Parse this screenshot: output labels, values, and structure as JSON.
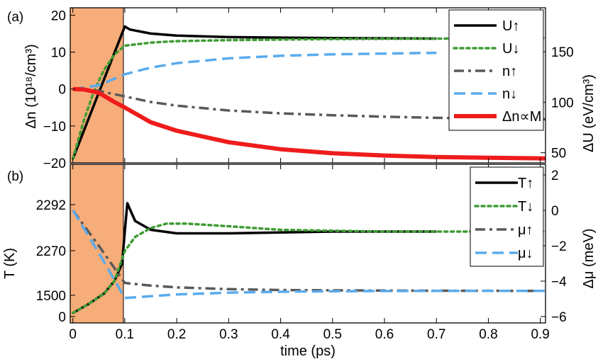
{
  "colors": {
    "pulse": "#f7ad79",
    "U_up": "#000000",
    "U_down": "#3f9c35",
    "n_up": "#595959",
    "n_down": "#5aabed",
    "dn": "#ee1c1c"
  },
  "chart_data": [
    {
      "type": "line",
      "panel_label": "(a)",
      "xlabel": "",
      "ylabel": "Δn (10¹⁸/cm³)",
      "ylabel_right": "ΔU (eV/cm³)",
      "xlim": [
        -0.005,
        0.91
      ],
      "ylim": [
        -20,
        22
      ],
      "ylim_right": [
        40,
        193.5
      ],
      "yticks": [
        -20,
        -10,
        0,
        10,
        20
      ],
      "yticks_right": [
        50,
        100,
        150
      ],
      "pulse_interval": [
        -0.005,
        0.1
      ],
      "legend_position": "top-right",
      "series": [
        {
          "name": "U↑",
          "key": "U_up",
          "axis": "right",
          "style": "solid",
          "width": 3.5,
          "x": [
            0,
            0.1,
            0.11,
            0.15,
            0.2,
            0.3,
            0.4,
            0.5,
            0.6,
            0.7
          ],
          "y": [
            44,
            175,
            172,
            168,
            166,
            164.5,
            164,
            163.5,
            163.3,
            163
          ]
        },
        {
          "name": "U↓",
          "key": "U_down",
          "axis": "right",
          "style": "dot",
          "width": 3.5,
          "x": [
            0,
            0.02,
            0.04,
            0.06,
            0.08,
            0.1,
            0.15,
            0.2,
            0.3,
            0.4,
            0.5,
            0.6,
            0.7,
            0.91
          ],
          "y": [
            44,
            80,
            110,
            132,
            147,
            156,
            159,
            160.5,
            161.5,
            162,
            162.5,
            162.8,
            163,
            163.5
          ]
        },
        {
          "name": "n↑",
          "key": "n_up",
          "axis": "left",
          "style": "dashdot",
          "width": 3.5,
          "x": [
            0,
            0.05,
            0.1,
            0.15,
            0.2,
            0.3,
            0.4,
            0.5,
            0.6,
            0.7,
            0.91
          ],
          "y": [
            0,
            -0.5,
            -2,
            -3.5,
            -4.5,
            -5.8,
            -6.6,
            -7.1,
            -7.5,
            -7.8,
            -8.2
          ]
        },
        {
          "name": "n↓",
          "key": "n_down",
          "axis": "left",
          "style": "dash",
          "width": 3.5,
          "x": [
            0,
            0.05,
            0.1,
            0.15,
            0.2,
            0.3,
            0.4,
            0.5,
            0.6,
            0.7
          ],
          "y": [
            0,
            1,
            4,
            5.8,
            7,
            8.3,
            9,
            9.4,
            9.6,
            9.8
          ]
        },
        {
          "name": "Δn∝M",
          "key": "dn",
          "axis": "left",
          "style": "solid",
          "width": 6,
          "x": [
            0,
            0.02,
            0.05,
            0.08,
            0.1,
            0.15,
            0.2,
            0.3,
            0.4,
            0.5,
            0.6,
            0.7,
            0.8,
            0.91
          ],
          "y": [
            0,
            -0.1,
            -1,
            -3.5,
            -5,
            -9,
            -11.3,
            -14.4,
            -16.3,
            -17.4,
            -18,
            -18.4,
            -18.6,
            -18.8
          ]
        }
      ]
    },
    {
      "type": "line",
      "panel_label": "(b)",
      "xlabel": "time (ps)",
      "ylabel": "T (K)",
      "ylabel_right": "Δμ (meV)",
      "xlim": [
        -0.005,
        0.91
      ],
      "xticks": [
        0,
        0.1,
        0.2,
        0.3,
        0.4,
        0.5,
        0.6,
        0.7,
        0.8,
        0.9
      ],
      "yticks_left_labels": [
        "2292",
        "2270",
        "1500",
        "0"
      ],
      "ylim_right": [
        -6.36,
        2.6
      ],
      "yticks_right": [
        -6,
        -4,
        -2,
        0,
        2
      ],
      "pulse_interval": [
        -0.005,
        0.1
      ],
      "legend_position": "top-right",
      "series": [
        {
          "name": "T↑",
          "key": "U_up",
          "axis": "right",
          "style": "solid",
          "width": 3.5,
          "x": [
            0,
            0.03,
            0.06,
            0.08,
            0.095,
            0.1,
            0.105,
            0.12,
            0.15,
            0.2,
            0.3,
            0.4,
            0.5,
            0.6,
            0.7
          ],
          "y": [
            -5.8,
            -5.3,
            -4.7,
            -4.0,
            -3.0,
            -1.2,
            0.4,
            -0.6,
            -1.1,
            -1.3,
            -1.3,
            -1.25,
            -1.2,
            -1.2,
            -1.2
          ]
        },
        {
          "name": "T↓",
          "key": "U_down",
          "axis": "right",
          "style": "dot",
          "width": 3.5,
          "x": [
            0,
            0.03,
            0.06,
            0.08,
            0.1,
            0.12,
            0.15,
            0.18,
            0.22,
            0.3,
            0.4,
            0.5,
            0.6,
            0.7,
            0.91
          ],
          "y": [
            -5.8,
            -5.3,
            -4.7,
            -4.0,
            -2.3,
            -1.5,
            -1.0,
            -0.75,
            -0.75,
            -0.9,
            -1.1,
            -1.15,
            -1.2,
            -1.2,
            -1.2
          ]
        },
        {
          "name": "μ↑",
          "key": "n_up",
          "axis": "right",
          "style": "dashdot",
          "width": 3.5,
          "x": [
            0,
            0.05,
            0.1,
            0.15,
            0.2,
            0.3,
            0.4,
            0.5,
            0.6,
            0.7,
            0.91
          ],
          "y": [
            0,
            -2.0,
            -4.1,
            -4.25,
            -4.35,
            -4.45,
            -4.5,
            -4.52,
            -4.53,
            -4.54,
            -4.55
          ]
        },
        {
          "name": "μ↓",
          "key": "n_down",
          "axis": "right",
          "style": "dash",
          "width": 3.5,
          "x": [
            0,
            0.05,
            0.1,
            0.15,
            0.2,
            0.3,
            0.4,
            0.5,
            0.6,
            0.7,
            0.91
          ],
          "y": [
            0,
            -2.4,
            -4.95,
            -4.85,
            -4.75,
            -4.65,
            -4.6,
            -4.57,
            -4.56,
            -4.55,
            -4.55
          ]
        }
      ]
    }
  ]
}
